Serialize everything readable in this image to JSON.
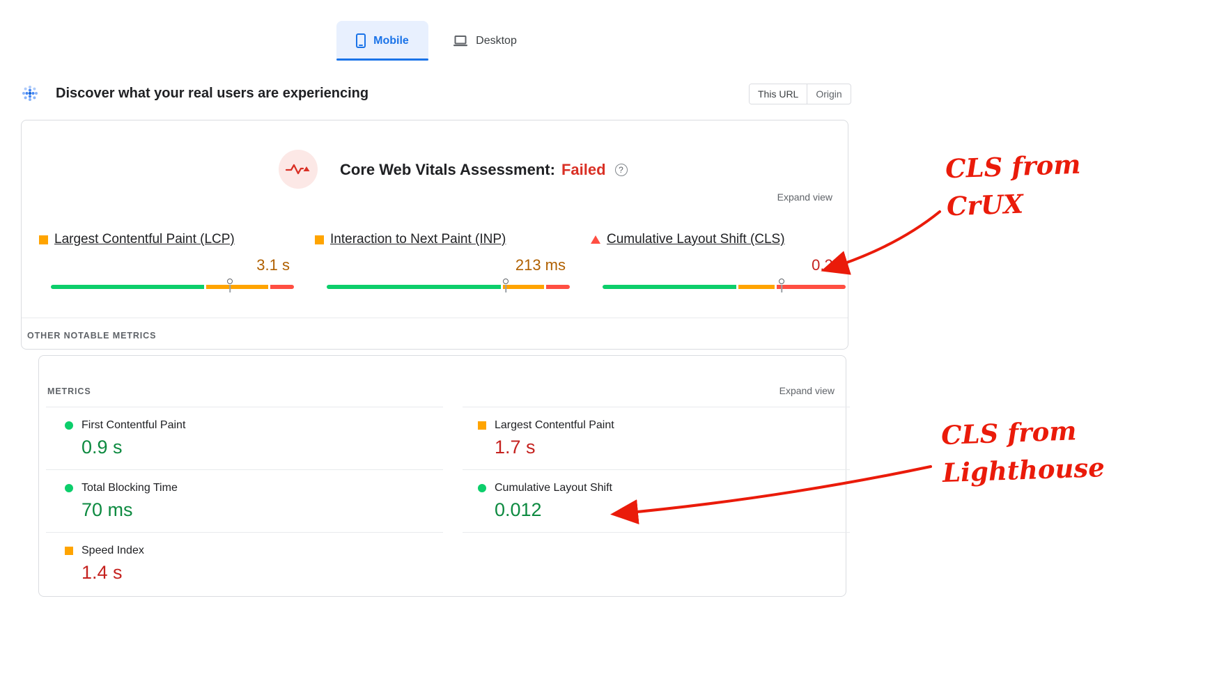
{
  "colors": {
    "blue": "#1a73e8",
    "tab-bg": "#e8f0fe",
    "bar-green": "#0cce6b",
    "bar-orange": "#ffa400",
    "bar-red": "#ff4e42",
    "value-green": "#0d8a40",
    "value-amber": "#b06000",
    "value-red": "#c5221f",
    "failed-red": "#d93025",
    "annotation-red": "#ea1b0a",
    "text-dark": "#202124",
    "text-gray": "#5f6368",
    "border": "#dadce0"
  },
  "device_tabs": {
    "mobile": "Mobile",
    "desktop": "Desktop"
  },
  "field_header": {
    "title": "Discover what your real users are experiencing",
    "scope": {
      "this_url": "This URL",
      "origin": "Origin"
    }
  },
  "crux": {
    "assessment_label": "Core Web Vitals Assessment:",
    "assessment_result": "Failed",
    "help_glyph": "?",
    "expand_view": "Expand view",
    "metrics": [
      {
        "name": "Largest Contentful Paint (LCP)",
        "value": "3.1 s",
        "rating": "needs-improvement",
        "bar": {
          "good": 64,
          "needs_improvement": 26,
          "poor": 10
        },
        "percentile_marker": 75
      },
      {
        "name": "Interaction to Next Paint (INP)",
        "value": "213 ms",
        "rating": "needs-improvement",
        "bar": {
          "good": 73,
          "needs_improvement": 17,
          "poor": 10
        },
        "percentile_marker": 75
      },
      {
        "name": "Cumulative Layout Shift (CLS)",
        "value": "0.28",
        "rating": "poor",
        "bar": {
          "good": 56,
          "needs_improvement": 15,
          "poor": 29
        },
        "percentile_marker": 75
      }
    ],
    "other_notable_metrics_label": "OTHER NOTABLE METRICS"
  },
  "lighthouse": {
    "metrics_label": "METRICS",
    "expand_view": "Expand view",
    "left_column": [
      {
        "name": "First Contentful Paint",
        "value": "0.9 s",
        "rating": "good"
      },
      {
        "name": "Total Blocking Time",
        "value": "70 ms",
        "rating": "good"
      },
      {
        "name": "Speed Index",
        "value": "1.4 s",
        "rating": "needs-improvement"
      }
    ],
    "right_column": [
      {
        "name": "Largest Contentful Paint",
        "value": "1.7 s",
        "rating": "needs-improvement"
      },
      {
        "name": "Cumulative Layout Shift",
        "value": "0.012",
        "rating": "good"
      }
    ]
  },
  "annotations": {
    "crux_note_line1": "CLS from",
    "crux_note_line2": "CrUX",
    "lighthouse_note_line1": "CLS from",
    "lighthouse_note_line2": "Lighthouse"
  }
}
